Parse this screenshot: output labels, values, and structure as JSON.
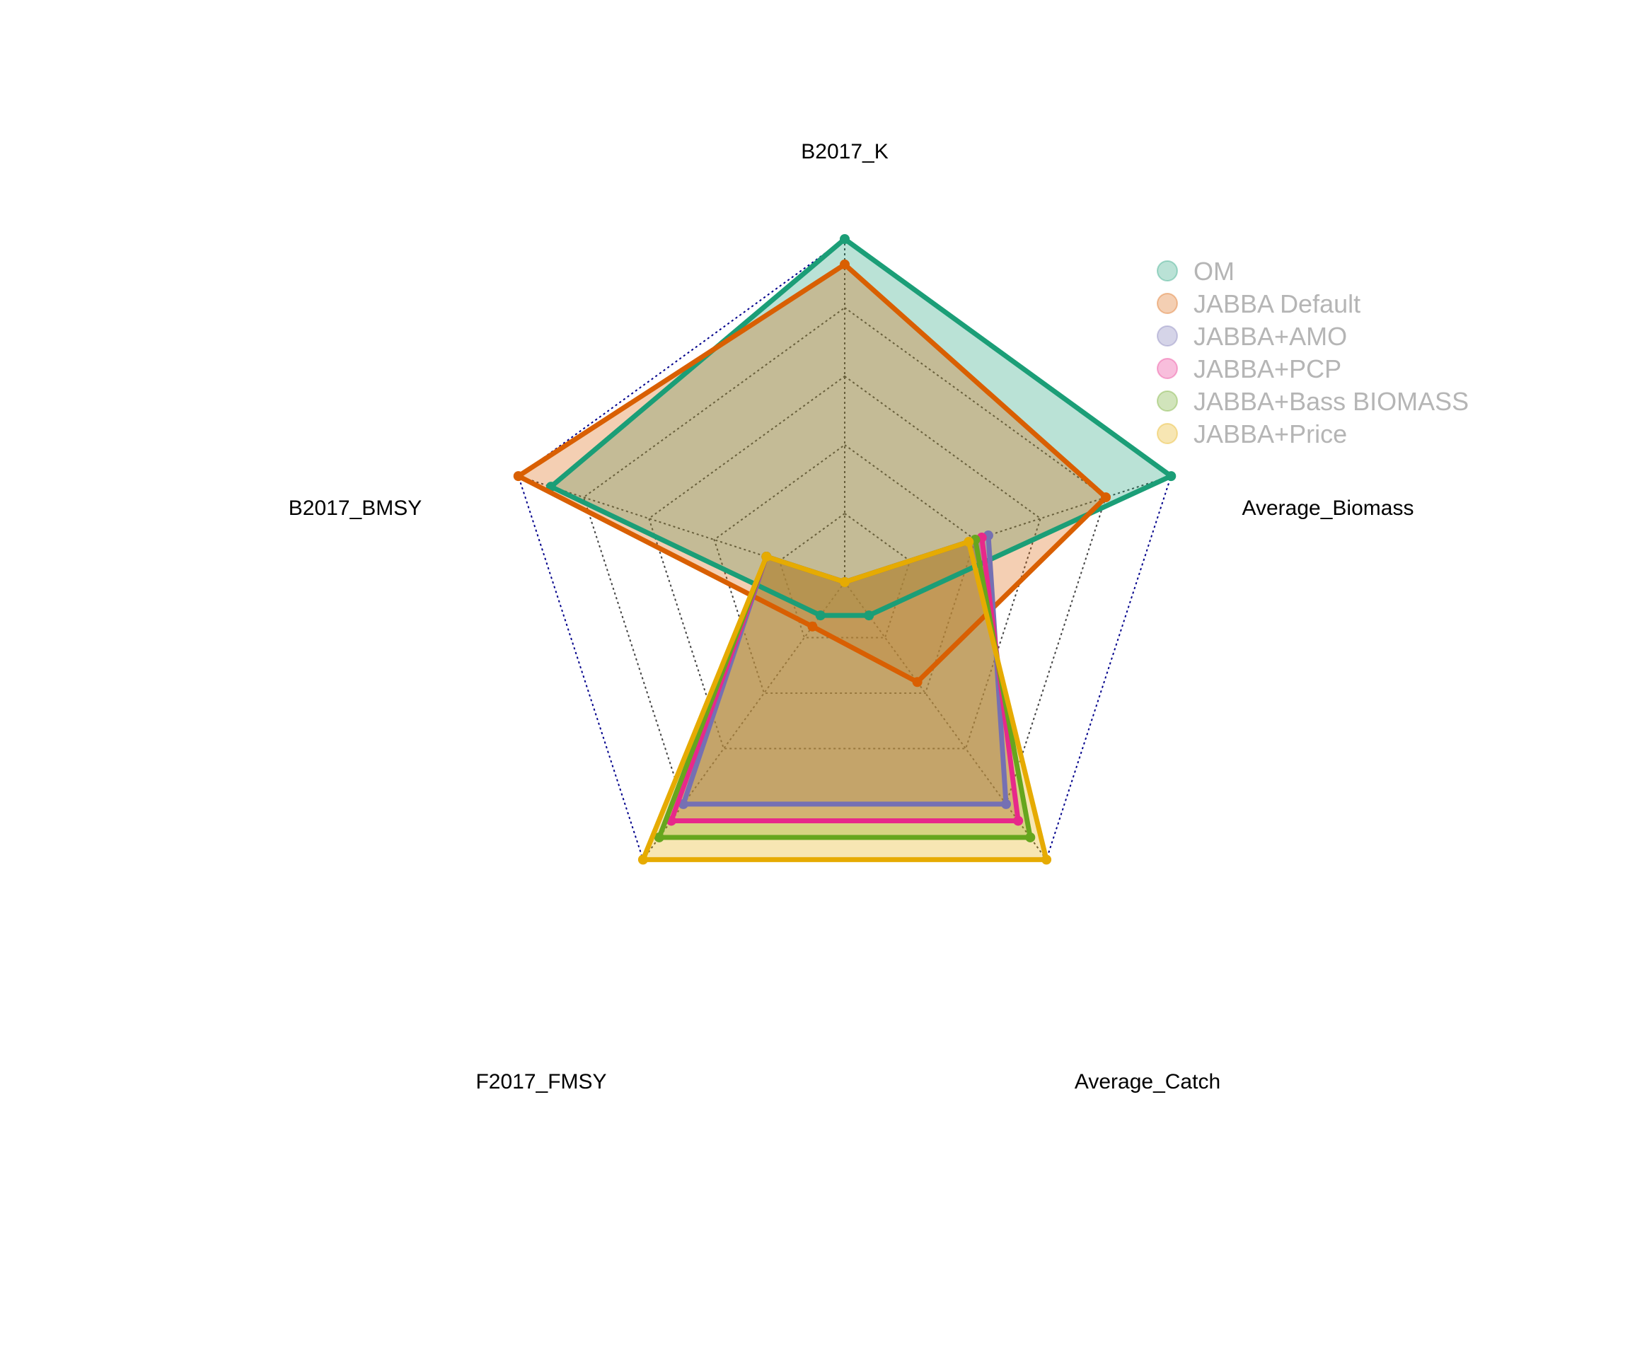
{
  "chart_data": {
    "type": "radar",
    "axes": [
      "B2017_K",
      "Average_Biomass",
      "Average_Catch",
      "F2017_FMSY",
      "B2017_BMSY"
    ],
    "rmin": -0.1,
    "rmax": 0.4,
    "grid_levels": [
      -0.1,
      0,
      0.1,
      0.2,
      0.3,
      0.4
    ],
    "legend_position": "top-right",
    "series": [
      {
        "name": "OM",
        "color": "#1B9E77",
        "values": [
          0.4,
          0.4,
          -0.04,
          -0.04,
          0.35
        ]
      },
      {
        "name": "JABBA Default",
        "color": "#D95F02",
        "values": [
          0.363,
          0.3,
          0.08,
          -0.02,
          0.4
        ]
      },
      {
        "name": "JABBA+AMO",
        "color": "#7570B3",
        "values": [
          -0.1,
          0.12,
          0.3,
          0.3,
          0.02
        ]
      },
      {
        "name": "JABBA+PCP",
        "color": "#E7298A",
        "values": [
          -0.1,
          0.11,
          0.33,
          0.33,
          0.02
        ]
      },
      {
        "name": "JABBA+Bass BIOMASS",
        "color": "#66A61E",
        "values": [
          -0.1,
          0.1,
          0.36,
          0.36,
          0.02
        ]
      },
      {
        "name": "JABBA+Price",
        "color": "#E6AB02",
        "values": [
          -0.1,
          0.09,
          0.4,
          0.4,
          0.02
        ]
      }
    ]
  }
}
